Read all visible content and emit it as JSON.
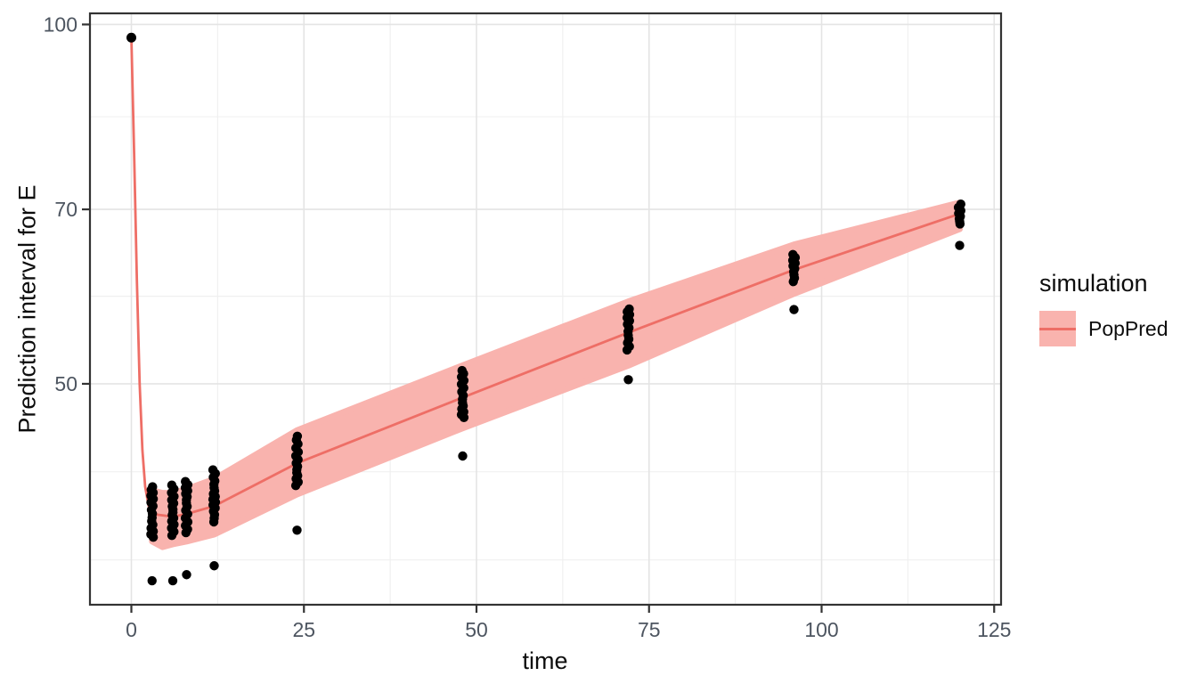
{
  "chart_data": {
    "type": "scatter",
    "title": "",
    "xlabel": "time",
    "ylabel": "Prediction interval for E",
    "x_ticks": [
      0,
      25,
      50,
      75,
      100,
      125
    ],
    "x_minor_ticks": [
      12.5,
      37.5,
      62.5,
      87.5,
      112.5
    ],
    "y_ticks": [
      50,
      70,
      100
    ],
    "y_minor_gridline_values": [
      35.6,
      42.2,
      59.2,
      83.7
    ],
    "y_scale": "log10",
    "x_domain": [
      -6,
      126
    ],
    "y_log10_domain": [
      1.5139,
      2.0093
    ],
    "grid": true,
    "legend_position": "right",
    "legend": {
      "title": "simulation",
      "entries": [
        {
          "label": "PopPred",
          "type": "ribbon+line"
        }
      ]
    },
    "series": {
      "poppred_line": {
        "t": [
          0,
          0.4,
          0.8,
          1.2,
          1.6,
          2,
          2.5,
          3,
          6,
          8,
          12,
          24,
          48,
          72,
          96,
          120
        ],
        "v": [
          97.5,
          78,
          61,
          50,
          44,
          41,
          39.5,
          38.9,
          38.7,
          38.9,
          39.5,
          42.9,
          48.7,
          55.2,
          62.3,
          69.4
        ]
      },
      "poppred_interval": {
        "t": [
          3,
          4.5,
          6,
          8,
          12,
          24,
          48,
          72,
          96,
          120
        ],
        "hi": [
          40.7,
          40.5,
          40.5,
          40.8,
          41.6,
          45.7,
          51.8,
          58.6,
          65.4,
          70.9
        ],
        "lo": [
          36.9,
          36.5,
          36.7,
          36.9,
          37.4,
          40.4,
          45.9,
          51.8,
          59.5,
          67.4
        ]
      },
      "observations": {
        "single_points": [
          {
            "t": 0,
            "v": 97.5
          }
        ],
        "clusters": [
          {
            "t": 3,
            "v_min": 37.2,
            "v_max": 41.0,
            "n": 16
          },
          {
            "t": 6,
            "v_min": 37.3,
            "v_max": 41.1,
            "n": 16
          },
          {
            "t": 8,
            "v_min": 37.6,
            "v_max": 41.5,
            "n": 16
          },
          {
            "t": 12,
            "v_min": 38.3,
            "v_max": 42.3,
            "n": 17
          },
          {
            "t": 24,
            "v_min": 41.0,
            "v_max": 45.1,
            "n": 15
          },
          {
            "t": 48,
            "v_min": 46.8,
            "v_max": 51.2,
            "n": 15
          },
          {
            "t": 72,
            "v_min": 53.5,
            "v_max": 57.8,
            "n": 13
          },
          {
            "t": 96,
            "v_min": 60.8,
            "v_max": 64.3,
            "n": 10
          },
          {
            "t": 120,
            "v_min": 68.0,
            "v_max": 70.8,
            "n": 8
          }
        ],
        "low_outliers": [
          {
            "t": 3,
            "v": 34.2
          },
          {
            "t": 6,
            "v": 34.2
          },
          {
            "t": 8,
            "v": 34.6
          },
          {
            "t": 12,
            "v": 35.2
          },
          {
            "t": 24,
            "v": 37.7
          },
          {
            "t": 48,
            "v": 43.5
          },
          {
            "t": 72,
            "v": 50.4
          },
          {
            "t": 96,
            "v": 57.7
          },
          {
            "t": 120,
            "v": 65.3
          }
        ]
      }
    },
    "colors": {
      "ribbon_fill": "#F9B3AE",
      "line": "#EE6E66",
      "point": "#000000",
      "grid_major": "#E4E4E4",
      "grid_minor": "#F0F0F0",
      "panel_border": "#333333",
      "tick_mark": "#333333",
      "tick_label": "#4d5560",
      "title_text": "#0d0d0d",
      "background": "#FFFFFF"
    }
  }
}
